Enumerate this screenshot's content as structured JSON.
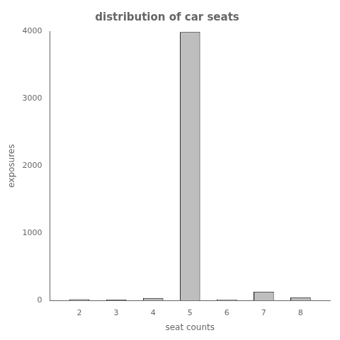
{
  "chart_data": {
    "type": "bar",
    "title": "distribution of car seats",
    "xlabel": "seat counts",
    "ylabel": "exposures",
    "x": [
      2,
      3,
      4,
      5,
      6,
      7,
      8
    ],
    "values": [
      20,
      15,
      38,
      3987,
      18,
      132,
      50
    ],
    "color": "#bebebe",
    "xlim": [
      1.2,
      8.8
    ],
    "xticks": [
      2,
      3,
      4,
      5,
      6,
      7,
      8
    ],
    "ylim": [
      0,
      4000
    ],
    "yticks": [
      0,
      1000,
      2000,
      3000,
      4000
    ],
    "grid": false
  }
}
